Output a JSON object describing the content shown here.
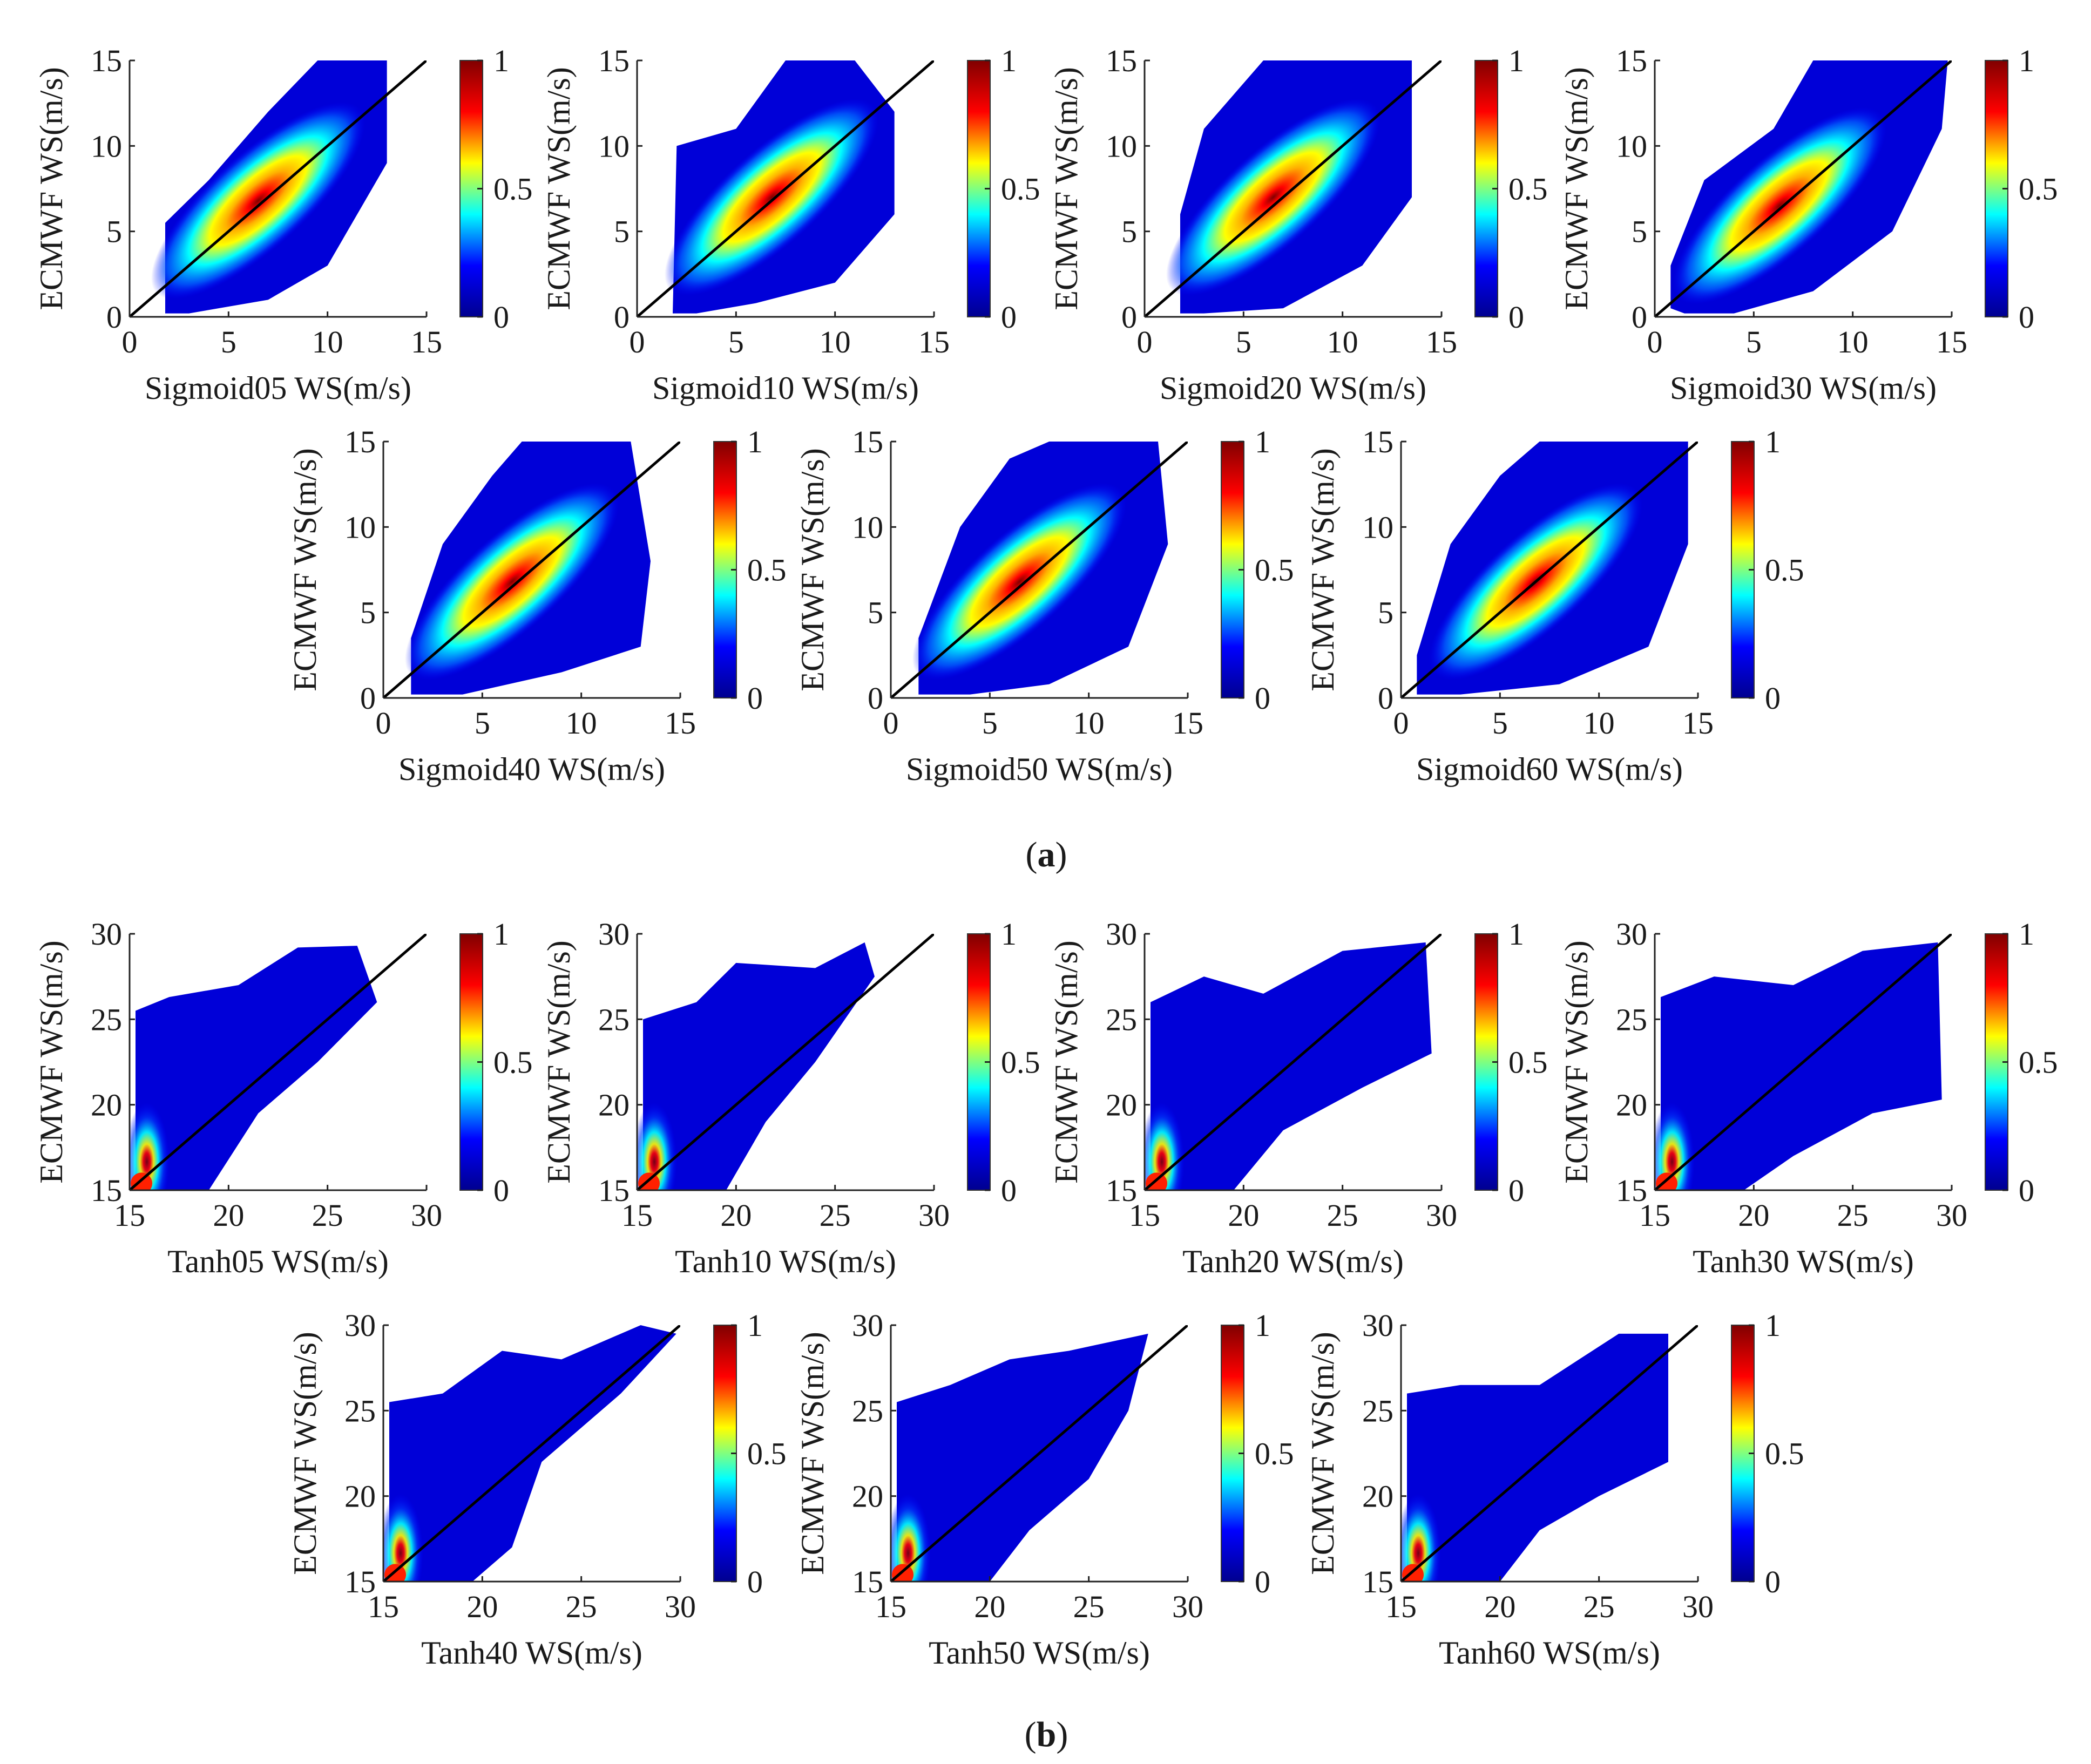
{
  "figure_captions": {
    "a": {
      "open": "(",
      "letter": "a",
      "close": ")"
    },
    "b": {
      "open": "(",
      "letter": "b",
      "close": ")"
    }
  },
  "colormap": {
    "name": "jet",
    "stops": [
      "#00008f",
      "#0000ff",
      "#00ffff",
      "#ffff00",
      "#ff0000",
      "#800000"
    ],
    "ticks": [
      "0",
      "0.5",
      "1"
    ]
  },
  "chart_data": [
    {
      "type": "scatter",
      "panel_group": "a",
      "xlabel": "Sigmoid05 WS(m/s)",
      "ylabel": "ECMWF WS(m/s)",
      "xlim": [
        0,
        15
      ],
      "ylim": [
        0,
        15
      ],
      "xticks": [
        "0",
        "5",
        "10",
        "15"
      ],
      "yticks": [
        "0",
        "5",
        "10",
        "15"
      ],
      "reference_line": [
        [
          0,
          0
        ],
        [
          15,
          15
        ]
      ],
      "density_peak": [
        6.5,
        6.8
      ],
      "point_cloud": [
        [
          1.8,
          0.2
        ],
        [
          1.8,
          5.5
        ],
        [
          4,
          8
        ],
        [
          7,
          12
        ],
        [
          9.5,
          15
        ],
        [
          13,
          15
        ],
        [
          13,
          9
        ],
        [
          10,
          3
        ],
        [
          7,
          1
        ],
        [
          3,
          0.2
        ]
      ],
      "colorbar": {
        "min": 0,
        "max": 1,
        "ticks": [
          "0",
          "0.5",
          "1"
        ]
      }
    },
    {
      "type": "scatter",
      "panel_group": "a",
      "xlabel": "Sigmoid10 WS(m/s)",
      "ylabel": "ECMWF WS(m/s)",
      "xlim": [
        0,
        15
      ],
      "ylim": [
        0,
        15
      ],
      "xticks": [
        "0",
        "5",
        "10",
        "15"
      ],
      "yticks": [
        "0",
        "5",
        "10",
        "15"
      ],
      "reference_line": [
        [
          0,
          0
        ],
        [
          15,
          15
        ]
      ],
      "density_peak": [
        6.8,
        7.0
      ],
      "point_cloud": [
        [
          1.8,
          0.2
        ],
        [
          2,
          10
        ],
        [
          5,
          11
        ],
        [
          7.5,
          15
        ],
        [
          11,
          15
        ],
        [
          13,
          12
        ],
        [
          13,
          6
        ],
        [
          10,
          2
        ],
        [
          6,
          0.8
        ],
        [
          3,
          0.2
        ]
      ],
      "colorbar": {
        "min": 0,
        "max": 1,
        "ticks": [
          "0",
          "0.5",
          "1"
        ]
      }
    },
    {
      "type": "scatter",
      "panel_group": "a",
      "xlabel": "Sigmoid20 WS(m/s)",
      "ylabel": "ECMWF WS(m/s)",
      "xlim": [
        0,
        15
      ],
      "ylim": [
        0,
        15
      ],
      "xticks": [
        "0",
        "5",
        "10",
        "15"
      ],
      "yticks": [
        "0",
        "5",
        "10",
        "15"
      ],
      "reference_line": [
        [
          0,
          0
        ],
        [
          15,
          15
        ]
      ],
      "density_peak": [
        6.5,
        7.0
      ],
      "point_cloud": [
        [
          1.8,
          0.2
        ],
        [
          1.8,
          6
        ],
        [
          3,
          11
        ],
        [
          6,
          15
        ],
        [
          13.5,
          15
        ],
        [
          13.5,
          7
        ],
        [
          11,
          3
        ],
        [
          7,
          0.5
        ],
        [
          3,
          0.2
        ]
      ],
      "colorbar": {
        "min": 0,
        "max": 1,
        "ticks": [
          "0",
          "0.5",
          "1"
        ]
      }
    },
    {
      "type": "scatter",
      "panel_group": "a",
      "xlabel": "Sigmoid30 WS(m/s)",
      "ylabel": "ECMWF WS(m/s)",
      "xlim": [
        0,
        15
      ],
      "ylim": [
        0,
        15
      ],
      "xticks": [
        "0",
        "5",
        "10",
        "15"
      ],
      "yticks": [
        "0",
        "5",
        "10",
        "15"
      ],
      "reference_line": [
        [
          0,
          0
        ],
        [
          15,
          15
        ]
      ],
      "density_peak": [
        6.3,
        6.5
      ],
      "point_cloud": [
        [
          0.8,
          0.5
        ],
        [
          0.8,
          3
        ],
        [
          2.5,
          8
        ],
        [
          6,
          11
        ],
        [
          8,
          15
        ],
        [
          14.8,
          15
        ],
        [
          14.5,
          11
        ],
        [
          12,
          5
        ],
        [
          8,
          1.5
        ],
        [
          4,
          0.2
        ],
        [
          1.5,
          0.2
        ]
      ],
      "colorbar": {
        "min": 0,
        "max": 1,
        "ticks": [
          "0",
          "0.5",
          "1"
        ]
      }
    },
    {
      "type": "scatter",
      "panel_group": "a",
      "xlabel": "Sigmoid40 WS(m/s)",
      "ylabel": "ECMWF WS(m/s)",
      "xlim": [
        0,
        15
      ],
      "ylim": [
        0,
        15
      ],
      "xticks": [
        "0",
        "5",
        "10",
        "15"
      ],
      "yticks": [
        "0",
        "5",
        "10",
        "15"
      ],
      "reference_line": [
        [
          0,
          0
        ],
        [
          15,
          15
        ]
      ],
      "density_peak": [
        6.5,
        6.8
      ],
      "point_cloud": [
        [
          1.4,
          0.2
        ],
        [
          1.4,
          3.5
        ],
        [
          3,
          9
        ],
        [
          5.5,
          13
        ],
        [
          7,
          15
        ],
        [
          12.5,
          15
        ],
        [
          13.5,
          8
        ],
        [
          13,
          3
        ],
        [
          9,
          1.5
        ],
        [
          4,
          0.2
        ]
      ],
      "colorbar": {
        "min": 0,
        "max": 1,
        "ticks": [
          "0",
          "0.5",
          "1"
        ]
      }
    },
    {
      "type": "scatter",
      "panel_group": "a",
      "xlabel": "Sigmoid50 WS(m/s)",
      "ylabel": "ECMWF WS(m/s)",
      "xlim": [
        0,
        15
      ],
      "ylim": [
        0,
        15
      ],
      "xticks": [
        "0",
        "5",
        "10",
        "15"
      ],
      "yticks": [
        "0",
        "5",
        "10",
        "15"
      ],
      "reference_line": [
        [
          0,
          0
        ],
        [
          15,
          15
        ]
      ],
      "density_peak": [
        6.5,
        6.8
      ],
      "point_cloud": [
        [
          1.4,
          0.2
        ],
        [
          1.4,
          3.5
        ],
        [
          3.5,
          10
        ],
        [
          6,
          14
        ],
        [
          8,
          15
        ],
        [
          13.5,
          15
        ],
        [
          14,
          9
        ],
        [
          12,
          3
        ],
        [
          8,
          0.8
        ],
        [
          4,
          0.2
        ]
      ],
      "colorbar": {
        "min": 0,
        "max": 1,
        "ticks": [
          "0",
          "0.5",
          "1"
        ]
      }
    },
    {
      "type": "scatter",
      "panel_group": "a",
      "xlabel": "Sigmoid60 WS(m/s)",
      "ylabel": "ECMWF WS(m/s)",
      "xlim": [
        0,
        15
      ],
      "ylim": [
        0,
        15
      ],
      "xticks": [
        "0",
        "5",
        "10",
        "15"
      ],
      "yticks": [
        "0",
        "5",
        "10",
        "15"
      ],
      "reference_line": [
        [
          0,
          0
        ],
        [
          15,
          15
        ]
      ],
      "density_peak": [
        6.8,
        6.8
      ],
      "point_cloud": [
        [
          0.8,
          0.2
        ],
        [
          0.8,
          2.5
        ],
        [
          2.5,
          9
        ],
        [
          5,
          13
        ],
        [
          7,
          15
        ],
        [
          14.5,
          15
        ],
        [
          14.5,
          9
        ],
        [
          12.5,
          3
        ],
        [
          8,
          0.8
        ],
        [
          3,
          0.2
        ]
      ],
      "colorbar": {
        "min": 0,
        "max": 1,
        "ticks": [
          "0",
          "0.5",
          "1"
        ]
      }
    },
    {
      "type": "scatter",
      "panel_group": "b",
      "xlabel": "Tanh05 WS(m/s)",
      "ylabel": "ECMWF WS(m/s)",
      "xlim": [
        15,
        30
      ],
      "ylim": [
        15,
        30
      ],
      "xticks": [
        "15",
        "20",
        "25",
        "30"
      ],
      "yticks": [
        "15",
        "20",
        "25",
        "30"
      ],
      "reference_line": [
        [
          15,
          15
        ],
        [
          30,
          30
        ]
      ],
      "density_peak": [
        15.6,
        15.4
      ],
      "point_cloud": [
        [
          15.3,
          15
        ],
        [
          15.3,
          25.5
        ],
        [
          17,
          26.3
        ],
        [
          20.5,
          27
        ],
        [
          23.5,
          29.2
        ],
        [
          26.5,
          29.3
        ],
        [
          27.5,
          26
        ],
        [
          24.5,
          22.5
        ],
        [
          21.5,
          19.5
        ],
        [
          19,
          15
        ]
      ],
      "colorbar": {
        "min": 0,
        "max": 1,
        "ticks": [
          "0",
          "0.5",
          "1"
        ]
      }
    },
    {
      "type": "scatter",
      "panel_group": "b",
      "xlabel": "Tanh10 WS(m/s)",
      "ylabel": "ECMWF WS(m/s)",
      "xlim": [
        15,
        30
      ],
      "ylim": [
        15,
        30
      ],
      "xticks": [
        "15",
        "20",
        "25",
        "30"
      ],
      "yticks": [
        "15",
        "20",
        "25",
        "30"
      ],
      "reference_line": [
        [
          15,
          15
        ],
        [
          30,
          30
        ]
      ],
      "density_peak": [
        15.6,
        15.4
      ],
      "point_cloud": [
        [
          15.3,
          15
        ],
        [
          15.3,
          25
        ],
        [
          18,
          26
        ],
        [
          20,
          28.3
        ],
        [
          24,
          28
        ],
        [
          26.5,
          29.5
        ],
        [
          27,
          27.5
        ],
        [
          24,
          22.5
        ],
        [
          21.5,
          19
        ],
        [
          19.5,
          15
        ]
      ],
      "colorbar": {
        "min": 0,
        "max": 1,
        "ticks": [
          "0",
          "0.5",
          "1"
        ]
      }
    },
    {
      "type": "scatter",
      "panel_group": "b",
      "xlabel": "Tanh20 WS(m/s)",
      "ylabel": "ECMWF WS(m/s)",
      "xlim": [
        15,
        30
      ],
      "ylim": [
        15,
        30
      ],
      "xticks": [
        "15",
        "20",
        "25",
        "30"
      ],
      "yticks": [
        "15",
        "20",
        "25",
        "30"
      ],
      "reference_line": [
        [
          15,
          15
        ],
        [
          30,
          30
        ]
      ],
      "density_peak": [
        15.6,
        15.4
      ],
      "point_cloud": [
        [
          15.3,
          15
        ],
        [
          15.3,
          26
        ],
        [
          18,
          27.5
        ],
        [
          21,
          26.5
        ],
        [
          25,
          29
        ],
        [
          29.2,
          29.5
        ],
        [
          29.5,
          23
        ],
        [
          26,
          21
        ],
        [
          22,
          18.5
        ],
        [
          19.5,
          15
        ]
      ],
      "colorbar": {
        "min": 0,
        "max": 1,
        "ticks": [
          "0",
          "0.5",
          "1"
        ]
      }
    },
    {
      "type": "scatter",
      "panel_group": "b",
      "xlabel": "Tanh30 WS(m/s)",
      "ylabel": "ECMWF WS(m/s)",
      "xlim": [
        15,
        30
      ],
      "ylim": [
        15,
        30
      ],
      "xticks": [
        "15",
        "20",
        "25",
        "30"
      ],
      "yticks": [
        "15",
        "20",
        "25",
        "30"
      ],
      "reference_line": [
        [
          15,
          15
        ],
        [
          30,
          30
        ]
      ],
      "density_peak": [
        15.6,
        15.4
      ],
      "point_cloud": [
        [
          15.3,
          15
        ],
        [
          15.3,
          26.3
        ],
        [
          18,
          27.5
        ],
        [
          22,
          27
        ],
        [
          25.5,
          29
        ],
        [
          29.3,
          29.5
        ],
        [
          29.5,
          20.3
        ],
        [
          26,
          19.5
        ],
        [
          22,
          17
        ],
        [
          19.5,
          15
        ]
      ],
      "colorbar": {
        "min": 0,
        "max": 1,
        "ticks": [
          "0",
          "0.5",
          "1"
        ]
      }
    },
    {
      "type": "scatter",
      "panel_group": "b",
      "xlabel": "Tanh40 WS(m/s)",
      "ylabel": "ECMWF WS(m/s)",
      "xlim": [
        15,
        30
      ],
      "ylim": [
        15,
        30
      ],
      "xticks": [
        "15",
        "20",
        "25",
        "30"
      ],
      "yticks": [
        "15",
        "20",
        "25",
        "30"
      ],
      "reference_line": [
        [
          15,
          15
        ],
        [
          30,
          30
        ]
      ],
      "density_peak": [
        15.6,
        15.4
      ],
      "point_cloud": [
        [
          15.3,
          15
        ],
        [
          15.3,
          25.5
        ],
        [
          18,
          26
        ],
        [
          21,
          28.5
        ],
        [
          24,
          28
        ],
        [
          28,
          30
        ],
        [
          29.8,
          29.5
        ],
        [
          27,
          26
        ],
        [
          23,
          22
        ],
        [
          21.5,
          17
        ],
        [
          19.5,
          15
        ]
      ],
      "colorbar": {
        "min": 0,
        "max": 1,
        "ticks": [
          "0",
          "0.5",
          "1"
        ]
      }
    },
    {
      "type": "scatter",
      "panel_group": "b",
      "xlabel": "Tanh50 WS(m/s)",
      "ylabel": "ECMWF WS(m/s)",
      "xlim": [
        15,
        30
      ],
      "ylim": [
        15,
        30
      ],
      "xticks": [
        "15",
        "20",
        "25",
        "30"
      ],
      "yticks": [
        "15",
        "20",
        "25",
        "30"
      ],
      "reference_line": [
        [
          15,
          15
        ],
        [
          30,
          30
        ]
      ],
      "density_peak": [
        15.6,
        15.4
      ],
      "point_cloud": [
        [
          15.3,
          15
        ],
        [
          15.3,
          25.5
        ],
        [
          18,
          26.5
        ],
        [
          21,
          28
        ],
        [
          24,
          28.5
        ],
        [
          28,
          29.5
        ],
        [
          27,
          25
        ],
        [
          25,
          21
        ],
        [
          22,
          18
        ],
        [
          20,
          15
        ]
      ],
      "colorbar": {
        "min": 0,
        "max": 1,
        "ticks": [
          "0",
          "0.5",
          "1"
        ]
      }
    },
    {
      "type": "scatter",
      "panel_group": "b",
      "xlabel": "Tanh60 WS(m/s)",
      "ylabel": "ECMWF WS(m/s)",
      "xlim": [
        15,
        30
      ],
      "ylim": [
        15,
        30
      ],
      "xticks": [
        "15",
        "20",
        "25",
        "30"
      ],
      "yticks": [
        "15",
        "20",
        "25",
        "30"
      ],
      "reference_line": [
        [
          15,
          15
        ],
        [
          30,
          30
        ]
      ],
      "density_peak": [
        15.6,
        15.4
      ],
      "point_cloud": [
        [
          15.3,
          15
        ],
        [
          15.3,
          26
        ],
        [
          18,
          26.5
        ],
        [
          22,
          26.5
        ],
        [
          26,
          29.5
        ],
        [
          28.5,
          29.5
        ],
        [
          28.5,
          22
        ],
        [
          25,
          20
        ],
        [
          22,
          18
        ],
        [
          20,
          15
        ]
      ],
      "colorbar": {
        "min": 0,
        "max": 1,
        "ticks": [
          "0",
          "0.5",
          "1"
        ]
      }
    }
  ]
}
